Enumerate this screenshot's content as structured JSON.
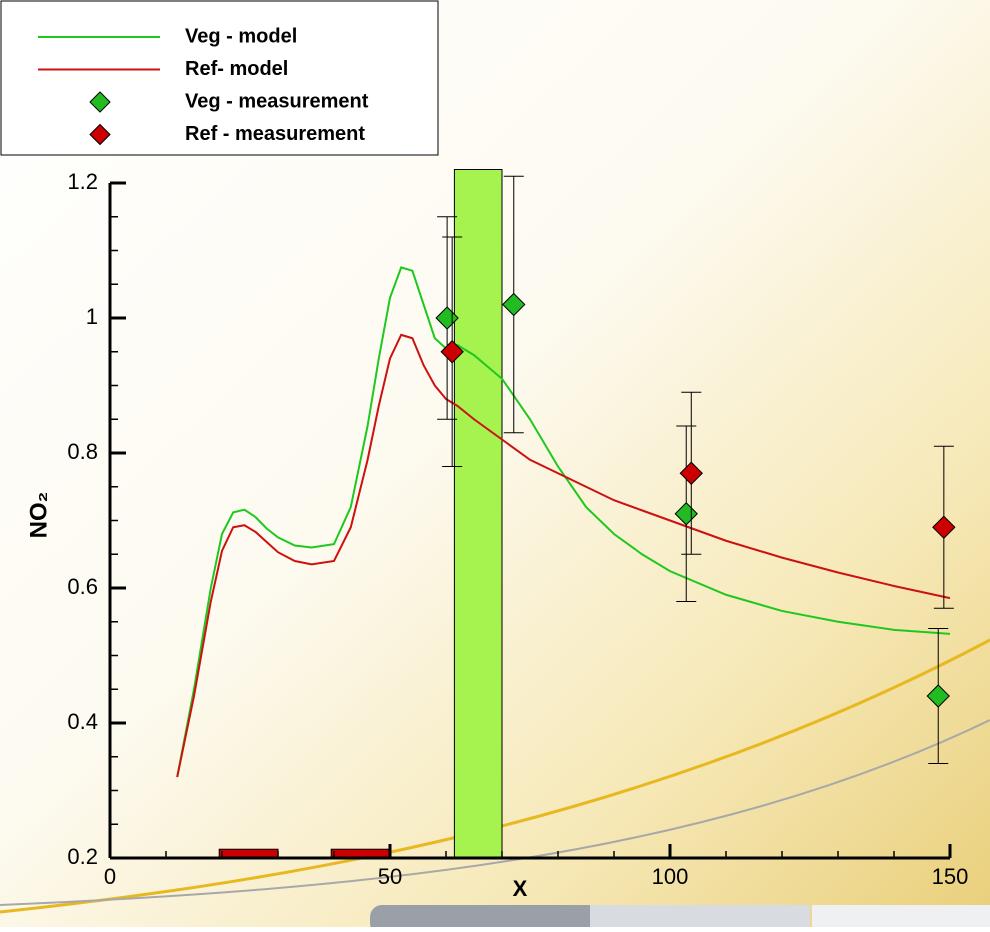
{
  "chart_data": {
    "type": "line",
    "xlabel": "X",
    "ylabel": "NO₂",
    "xlim": [
      0,
      150
    ],
    "ylim": [
      0.2,
      1.2
    ],
    "xticks": [
      0,
      50,
      100,
      150
    ],
    "yticks": [
      0.2,
      0.4,
      0.6,
      0.8,
      1,
      1.2
    ],
    "xminorticks": [
      10,
      20,
      30,
      40,
      60,
      70,
      80,
      90,
      110,
      120,
      130,
      140
    ],
    "yminorticks": [
      0.25,
      0.3,
      0.35,
      0.45,
      0.5,
      0.55,
      0.65,
      0.7,
      0.75,
      0.85,
      0.9,
      0.95,
      1.05,
      1.1,
      1.15
    ],
    "regions": [
      {
        "color": "#a6f24e",
        "x": [
          61.5,
          70
        ],
        "y": [
          0.2,
          1.22
        ]
      },
      {
        "color": "#cc0000",
        "x": [
          19.5,
          30
        ],
        "y": [
          0.2,
          0.213
        ]
      },
      {
        "color": "#cc0000",
        "x": [
          39.5,
          50
        ],
        "y": [
          0.2,
          0.213
        ]
      }
    ],
    "series": [
      {
        "name": "Veg - model",
        "mode": "line",
        "color": "#1ec81e",
        "x": [
          12,
          15,
          18,
          20,
          22,
          24,
          26,
          28,
          30,
          33,
          36,
          40,
          43,
          46,
          48,
          50,
          52,
          54,
          56,
          58,
          60,
          62,
          65,
          70,
          75,
          80,
          85,
          90,
          95,
          100,
          110,
          120,
          130,
          140,
          150
        ],
        "values": [
          0.32,
          0.45,
          0.6,
          0.68,
          0.712,
          0.716,
          0.705,
          0.688,
          0.675,
          0.663,
          0.66,
          0.665,
          0.72,
          0.84,
          0.94,
          1.03,
          1.075,
          1.07,
          1.02,
          0.97,
          0.955,
          0.96,
          0.945,
          0.91,
          0.85,
          0.78,
          0.72,
          0.68,
          0.65,
          0.625,
          0.59,
          0.566,
          0.55,
          0.538,
          0.532
        ]
      },
      {
        "name": "Ref- model",
        "mode": "line",
        "color": "#cc1111",
        "x": [
          12,
          15,
          18,
          20,
          22,
          24,
          26,
          28,
          30,
          33,
          36,
          40,
          43,
          46,
          48,
          50,
          52,
          54,
          56,
          58,
          60,
          62,
          65,
          70,
          75,
          80,
          85,
          90,
          95,
          100,
          110,
          120,
          130,
          140,
          150
        ],
        "values": [
          0.32,
          0.44,
          0.58,
          0.655,
          0.69,
          0.693,
          0.683,
          0.668,
          0.653,
          0.64,
          0.635,
          0.64,
          0.69,
          0.79,
          0.87,
          0.94,
          0.975,
          0.97,
          0.93,
          0.9,
          0.88,
          0.87,
          0.85,
          0.82,
          0.79,
          0.77,
          0.75,
          0.73,
          0.715,
          0.7,
          0.67,
          0.645,
          0.623,
          0.603,
          0.585
        ]
      },
      {
        "name": "Veg - measurement",
        "mode": "markers",
        "color": "#22bb22",
        "x": [
          60.2,
          72.1,
          102.9,
          147.9
        ],
        "values": [
          1.0,
          1.02,
          0.71,
          0.44
        ],
        "errors": [
          0.15,
          0.19,
          0.13,
          0.1
        ]
      },
      {
        "name": "Ref - measurement",
        "mode": "markers",
        "color": "#cc0000",
        "x": [
          61.1,
          103.8,
          148.9
        ],
        "values": [
          0.95,
          0.77,
          0.69
        ],
        "errors": [
          0.17,
          0.12,
          0.12
        ]
      }
    ]
  }
}
